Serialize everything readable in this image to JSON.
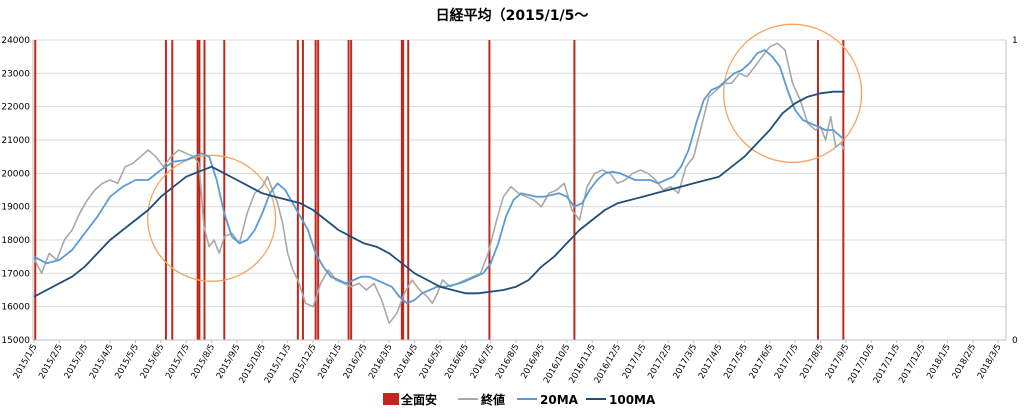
{
  "chart_data": {
    "type": "line",
    "title": "日経平均（2015/1/5〜",
    "xlabel": "",
    "ylabel": "",
    "ylim": [
      15000,
      24000
    ],
    "yticks": [
      "15000",
      "16000",
      "17000",
      "18000",
      "19000",
      "20000",
      "21000",
      "22000",
      "23000",
      "24000"
    ],
    "y2lim": [
      0,
      1
    ],
    "y2ticks": [
      "0",
      "1"
    ],
    "grid": "horizontal",
    "legend_position": "bottom",
    "x_categories": [
      "2015/1/5",
      "2015/2/5",
      "2015/3/5",
      "2015/4/5",
      "2015/5/5",
      "2015/6/5",
      "2015/7/5",
      "2015/8/5",
      "2015/9/5",
      "2015/10/5",
      "2015/11/5",
      "2015/12/5",
      "2016/1/5",
      "2016/2/5",
      "2016/3/5",
      "2016/4/5",
      "2016/5/5",
      "2016/6/5",
      "2016/7/5",
      "2016/8/5",
      "2016/9/5",
      "2016/10/5",
      "2016/11/5",
      "2016/12/5",
      "2017/1/5",
      "2017/2/5",
      "2017/3/5",
      "2017/4/5",
      "2017/5/5",
      "2017/6/5",
      "2017/7/5",
      "2017/8/5",
      "2017/9/5",
      "2017/10/5",
      "2017/11/5",
      "2017/12/5",
      "2018/1/5",
      "2018/2/5",
      "2018/3/5"
    ],
    "series": [
      {
        "name": "全面安",
        "kind": "events",
        "color": "#c0281c",
        "x": [
          0.05,
          5.2,
          5.45,
          6.45,
          6.52,
          6.72,
          7.5,
          10.4,
          10.6,
          11.1,
          11.2,
          12.4,
          12.5,
          14.5,
          14.55,
          14.75,
          17.95,
          21.3,
          30.9,
          31.9
        ]
      },
      {
        "name": "終値",
        "color": "#a8a8a8",
        "x": [
          0,
          0.3,
          0.6,
          0.9,
          1.2,
          1.5,
          1.8,
          2.1,
          2.4,
          2.7,
          3,
          3.3,
          3.6,
          3.9,
          4.2,
          4.5,
          4.8,
          5.1,
          5.4,
          5.7,
          6,
          6.3,
          6.5,
          6.7,
          6.9,
          7.1,
          7.3,
          7.5,
          7.8,
          8.1,
          8.4,
          8.7,
          9,
          9.2,
          9.4,
          9.6,
          9.8,
          10,
          10.2,
          10.4,
          10.7,
          11,
          11.3,
          11.6,
          11.9,
          12.2,
          12.5,
          12.8,
          13.1,
          13.4,
          13.7,
          14,
          14.3,
          14.6,
          14.9,
          15.2,
          15.5,
          15.7,
          15.9,
          16.1,
          16.4,
          16.7,
          17,
          17.3,
          17.6,
          17.9,
          18.2,
          18.5,
          18.8,
          19.1,
          19.4,
          19.7,
          20,
          20.3,
          20.6,
          20.9,
          21.2,
          21.5,
          21.8,
          22.1,
          22.4,
          22.7,
          23,
          23.3,
          23.6,
          23.9,
          24.2,
          24.5,
          24.8,
          25.1,
          25.4,
          25.7,
          26,
          26.3,
          26.6,
          26.9,
          27.2,
          27.5,
          27.8,
          28.1,
          28.4,
          28.7,
          29,
          29.3,
          29.6,
          29.9,
          30.2,
          30.5,
          30.8,
          31,
          31.2,
          31.4,
          31.6,
          31.8,
          31.95
        ],
        "values": [
          17450,
          17000,
          17600,
          17400,
          18000,
          18300,
          18800,
          19200,
          19500,
          19700,
          19800,
          19700,
          20200,
          20300,
          20500,
          20700,
          20500,
          20200,
          20500,
          20700,
          20600,
          20500,
          20300,
          18400,
          17800,
          18000,
          17600,
          18100,
          18200,
          17900,
          18800,
          19400,
          19600,
          19900,
          19500,
          19100,
          18500,
          17600,
          17100,
          16800,
          16100,
          16000,
          16700,
          17100,
          16800,
          16700,
          16600,
          16700,
          16500,
          16700,
          16200,
          15500,
          15800,
          16400,
          16800,
          16500,
          16300,
          16100,
          16400,
          16800,
          16600,
          16700,
          16800,
          16900,
          17000,
          17600,
          18500,
          19300,
          19600,
          19400,
          19300,
          19200,
          19000,
          19400,
          19500,
          19700,
          18900,
          18600,
          19600,
          20000,
          20100,
          20000,
          19700,
          19800,
          20000,
          20100,
          20000,
          19800,
          19500,
          19600,
          19400,
          20200,
          20500,
          21400,
          22300,
          22500,
          22700,
          22700,
          23000,
          22900,
          23200,
          23500,
          23800,
          23900,
          23700,
          22700,
          22200,
          21500,
          21300,
          21400,
          21000,
          21700,
          20800,
          20900,
          20700
        ]
      },
      {
        "name": "20MA",
        "color": "#5b9bd5",
        "x": [
          0,
          0.5,
          1,
          1.5,
          2,
          2.5,
          3,
          3.5,
          4,
          4.5,
          5,
          5.5,
          6,
          6.3,
          6.6,
          6.9,
          7.2,
          7.5,
          7.8,
          8.1,
          8.4,
          8.7,
          9,
          9.3,
          9.6,
          9.9,
          10.2,
          10.5,
          10.8,
          11.1,
          11.4,
          11.7,
          12,
          12.3,
          12.6,
          12.9,
          13.2,
          13.5,
          13.8,
          14.1,
          14.4,
          14.7,
          15,
          15.3,
          15.6,
          15.9,
          16.2,
          16.5,
          16.8,
          17.1,
          17.4,
          17.7,
          18,
          18.3,
          18.6,
          18.9,
          19.2,
          19.5,
          19.8,
          20.1,
          20.4,
          20.7,
          21,
          21.3,
          21.6,
          21.9,
          22.2,
          22.5,
          22.8,
          23.1,
          23.4,
          23.7,
          24,
          24.3,
          24.6,
          24.9,
          25.2,
          25.5,
          25.8,
          26.1,
          26.4,
          26.7,
          27,
          27.3,
          27.6,
          27.9,
          28.2,
          28.5,
          28.8,
          29.1,
          29.4,
          29.7,
          30,
          30.3,
          30.6,
          30.9,
          31.2,
          31.5,
          31.8,
          31.95
        ],
        "values": [
          17500,
          17300,
          17400,
          17700,
          18200,
          18700,
          19300,
          19600,
          19800,
          19800,
          20100,
          20350,
          20400,
          20500,
          20600,
          20500,
          19800,
          18800,
          18100,
          17900,
          18000,
          18300,
          18800,
          19400,
          19700,
          19500,
          19100,
          18700,
          18300,
          17600,
          17200,
          16900,
          16800,
          16700,
          16800,
          16900,
          16900,
          16800,
          16700,
          16600,
          16300,
          16100,
          16200,
          16400,
          16500,
          16600,
          16600,
          16650,
          16700,
          16800,
          16900,
          17000,
          17300,
          17900,
          18700,
          19200,
          19400,
          19350,
          19300,
          19300,
          19350,
          19400,
          19300,
          19000,
          19100,
          19500,
          19800,
          20000,
          20050,
          20000,
          19900,
          19800,
          19800,
          19800,
          19700,
          19800,
          19900,
          20200,
          20700,
          21500,
          22200,
          22500,
          22600,
          22800,
          23000,
          23100,
          23300,
          23600,
          23700,
          23500,
          23200,
          22500,
          21900,
          21600,
          21500,
          21400,
          21300,
          21300,
          21100,
          21000
        ]
      },
      {
        "name": "100MA",
        "color": "#1f4e79",
        "x": [
          0,
          0.5,
          1,
          1.5,
          2,
          2.5,
          3,
          3.5,
          4,
          4.5,
          5,
          5.5,
          6,
          6.5,
          7,
          7.5,
          8,
          8.5,
          9,
          9.5,
          10,
          10.5,
          11,
          11.5,
          12,
          12.5,
          13,
          13.5,
          14,
          14.5,
          15,
          15.5,
          16,
          16.5,
          17,
          17.5,
          18,
          18.5,
          19,
          19.5,
          20,
          20.5,
          21,
          21.5,
          22,
          22.5,
          23,
          23.5,
          24,
          24.5,
          25,
          25.5,
          26,
          26.5,
          27,
          27.5,
          28,
          28.5,
          29,
          29.5,
          30,
          30.5,
          31,
          31.5,
          31.95
        ],
        "values": [
          16300,
          16500,
          16700,
          16900,
          17200,
          17600,
          18000,
          18300,
          18600,
          18900,
          19300,
          19600,
          19900,
          20050,
          20200,
          20000,
          19800,
          19600,
          19400,
          19300,
          19200,
          19100,
          18900,
          18600,
          18300,
          18100,
          17900,
          17800,
          17600,
          17300,
          17000,
          16800,
          16600,
          16500,
          16400,
          16400,
          16450,
          16500,
          16600,
          16800,
          17200,
          17500,
          17900,
          18300,
          18600,
          18900,
          19100,
          19200,
          19300,
          19400,
          19500,
          19600,
          19700,
          19800,
          19900,
          20200,
          20500,
          20900,
          21300,
          21800,
          22100,
          22300,
          22400,
          22450,
          22450
        ]
      }
    ],
    "annotations": [
      {
        "shape": "circle",
        "color": "#f4a460",
        "note": "highlight around 2015/8 - 2015/10"
      },
      {
        "shape": "circle",
        "color": "#f4a460",
        "note": "highlight around 2018/1 - 2018/3"
      }
    ]
  },
  "legend": {
    "items": [
      {
        "label": "全面安",
        "swatch": "rect",
        "color": "#c0281c"
      },
      {
        "label": "終値",
        "swatch": "line",
        "color": "#a8a8a8"
      },
      {
        "label": "20MA",
        "swatch": "line",
        "color": "#5b9bd5"
      },
      {
        "label": "100MA",
        "swatch": "line",
        "color": "#1f4e79"
      }
    ]
  }
}
